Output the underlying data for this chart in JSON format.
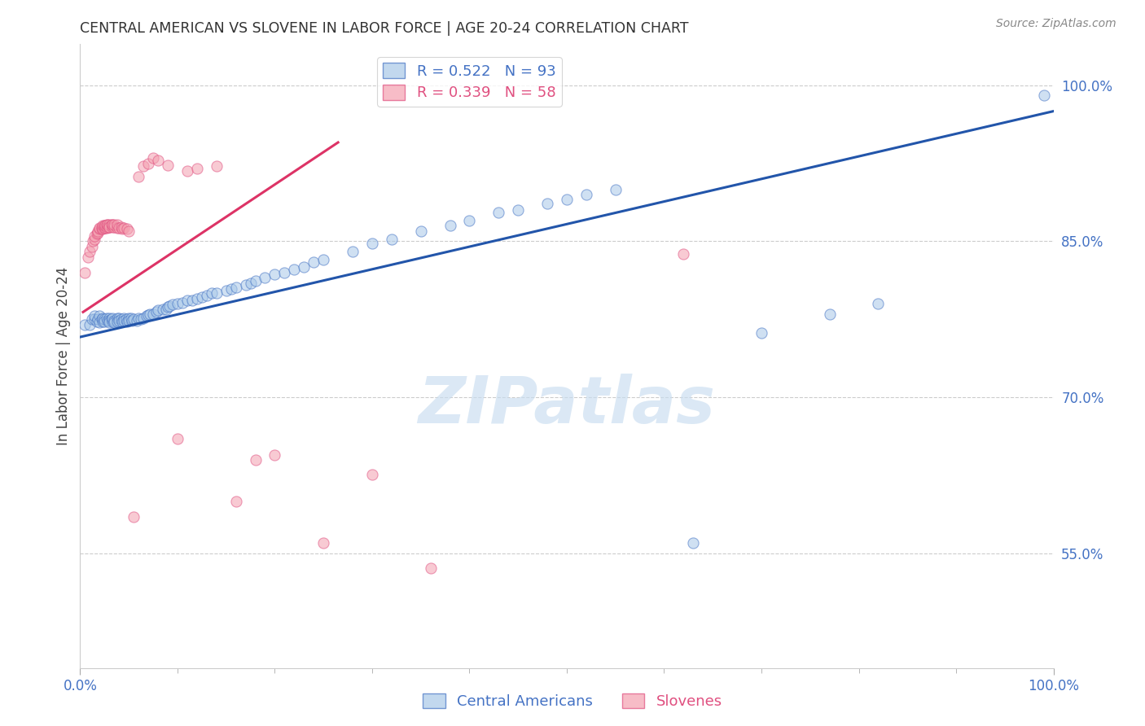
{
  "title": "CENTRAL AMERICAN VS SLOVENE IN LABOR FORCE | AGE 20-24 CORRELATION CHART",
  "source": "Source: ZipAtlas.com",
  "ylabel": "In Labor Force | Age 20-24",
  "xmin": 0.0,
  "xmax": 1.0,
  "ymin": 0.44,
  "ymax": 1.04,
  "yticks": [
    0.55,
    0.7,
    0.85,
    1.0
  ],
  "ytick_labels": [
    "55.0%",
    "70.0%",
    "85.0%",
    "100.0%"
  ],
  "xtick_labels": [
    "0.0%",
    "100.0%"
  ],
  "blue_R": 0.522,
  "blue_N": 93,
  "pink_R": 0.339,
  "pink_N": 58,
  "blue_fill": "#a8c8e8",
  "blue_edge": "#4472c4",
  "pink_fill": "#f4a0b0",
  "pink_edge": "#e05080",
  "blue_line_color": "#2255aa",
  "pink_line_color": "#dd3366",
  "legend_blue_label": "Central Americans",
  "legend_pink_label": "Slovenes",
  "tick_color": "#4472c4",
  "watermark_text": "ZIPatlas",
  "blue_scatter_x": [
    0.005,
    0.01,
    0.012,
    0.015,
    0.015,
    0.017,
    0.018,
    0.02,
    0.02,
    0.022,
    0.023,
    0.023,
    0.025,
    0.025,
    0.027,
    0.028,
    0.03,
    0.03,
    0.03,
    0.032,
    0.033,
    0.033,
    0.035,
    0.035,
    0.038,
    0.038,
    0.04,
    0.04,
    0.042,
    0.043,
    0.045,
    0.045,
    0.047,
    0.048,
    0.05,
    0.05,
    0.052,
    0.053,
    0.055,
    0.058,
    0.06,
    0.062,
    0.065,
    0.068,
    0.07,
    0.072,
    0.075,
    0.078,
    0.08,
    0.085,
    0.088,
    0.09,
    0.092,
    0.095,
    0.1,
    0.105,
    0.11,
    0.115,
    0.12,
    0.125,
    0.13,
    0.135,
    0.14,
    0.15,
    0.155,
    0.16,
    0.17,
    0.175,
    0.18,
    0.19,
    0.2,
    0.21,
    0.22,
    0.23,
    0.24,
    0.25,
    0.28,
    0.3,
    0.32,
    0.35,
    0.38,
    0.4,
    0.43,
    0.45,
    0.48,
    0.5,
    0.52,
    0.55,
    0.63,
    0.7,
    0.77,
    0.82,
    0.99
  ],
  "blue_scatter_y": [
    0.77,
    0.77,
    0.775,
    0.775,
    0.778,
    0.773,
    0.775,
    0.778,
    0.772,
    0.775,
    0.773,
    0.776,
    0.775,
    0.773,
    0.776,
    0.774,
    0.776,
    0.774,
    0.772,
    0.775,
    0.773,
    0.776,
    0.774,
    0.772,
    0.776,
    0.773,
    0.776,
    0.774,
    0.775,
    0.773,
    0.776,
    0.774,
    0.775,
    0.773,
    0.776,
    0.774,
    0.776,
    0.774,
    0.775,
    0.774,
    0.776,
    0.775,
    0.776,
    0.778,
    0.779,
    0.78,
    0.78,
    0.782,
    0.784,
    0.785,
    0.785,
    0.787,
    0.788,
    0.789,
    0.79,
    0.791,
    0.793,
    0.793,
    0.795,
    0.796,
    0.798,
    0.8,
    0.8,
    0.803,
    0.804,
    0.806,
    0.808,
    0.81,
    0.812,
    0.815,
    0.818,
    0.82,
    0.823,
    0.825,
    0.83,
    0.832,
    0.84,
    0.848,
    0.852,
    0.86,
    0.865,
    0.87,
    0.878,
    0.88,
    0.886,
    0.89,
    0.895,
    0.9,
    0.56,
    0.762,
    0.78,
    0.79,
    0.99
  ],
  "pink_scatter_x": [
    0.005,
    0.008,
    0.01,
    0.012,
    0.013,
    0.015,
    0.015,
    0.017,
    0.018,
    0.018,
    0.02,
    0.02,
    0.022,
    0.022,
    0.023,
    0.023,
    0.025,
    0.025,
    0.026,
    0.026,
    0.027,
    0.027,
    0.028,
    0.028,
    0.03,
    0.03,
    0.03,
    0.032,
    0.033,
    0.033,
    0.035,
    0.035,
    0.038,
    0.038,
    0.04,
    0.042,
    0.043,
    0.045,
    0.048,
    0.05,
    0.055,
    0.06,
    0.065,
    0.07,
    0.075,
    0.08,
    0.09,
    0.1,
    0.11,
    0.12,
    0.14,
    0.16,
    0.18,
    0.2,
    0.25,
    0.3,
    0.36,
    0.62
  ],
  "pink_scatter_y": [
    0.82,
    0.835,
    0.84,
    0.845,
    0.85,
    0.852,
    0.855,
    0.857,
    0.858,
    0.86,
    0.862,
    0.863,
    0.862,
    0.864,
    0.862,
    0.865,
    0.863,
    0.865,
    0.863,
    0.865,
    0.863,
    0.866,
    0.864,
    0.866,
    0.864,
    0.866,
    0.864,
    0.866,
    0.864,
    0.866,
    0.864,
    0.866,
    0.863,
    0.866,
    0.863,
    0.864,
    0.862,
    0.863,
    0.862,
    0.86,
    0.585,
    0.912,
    0.922,
    0.925,
    0.93,
    0.928,
    0.923,
    0.66,
    0.918,
    0.92,
    0.922,
    0.6,
    0.64,
    0.645,
    0.56,
    0.626,
    0.536,
    0.838
  ],
  "blue_line_y0": 0.758,
  "blue_line_y1": 0.975,
  "pink_line_x0": 0.003,
  "pink_line_x1": 0.265,
  "pink_line_y0": 0.782,
  "pink_line_y1": 0.945
}
